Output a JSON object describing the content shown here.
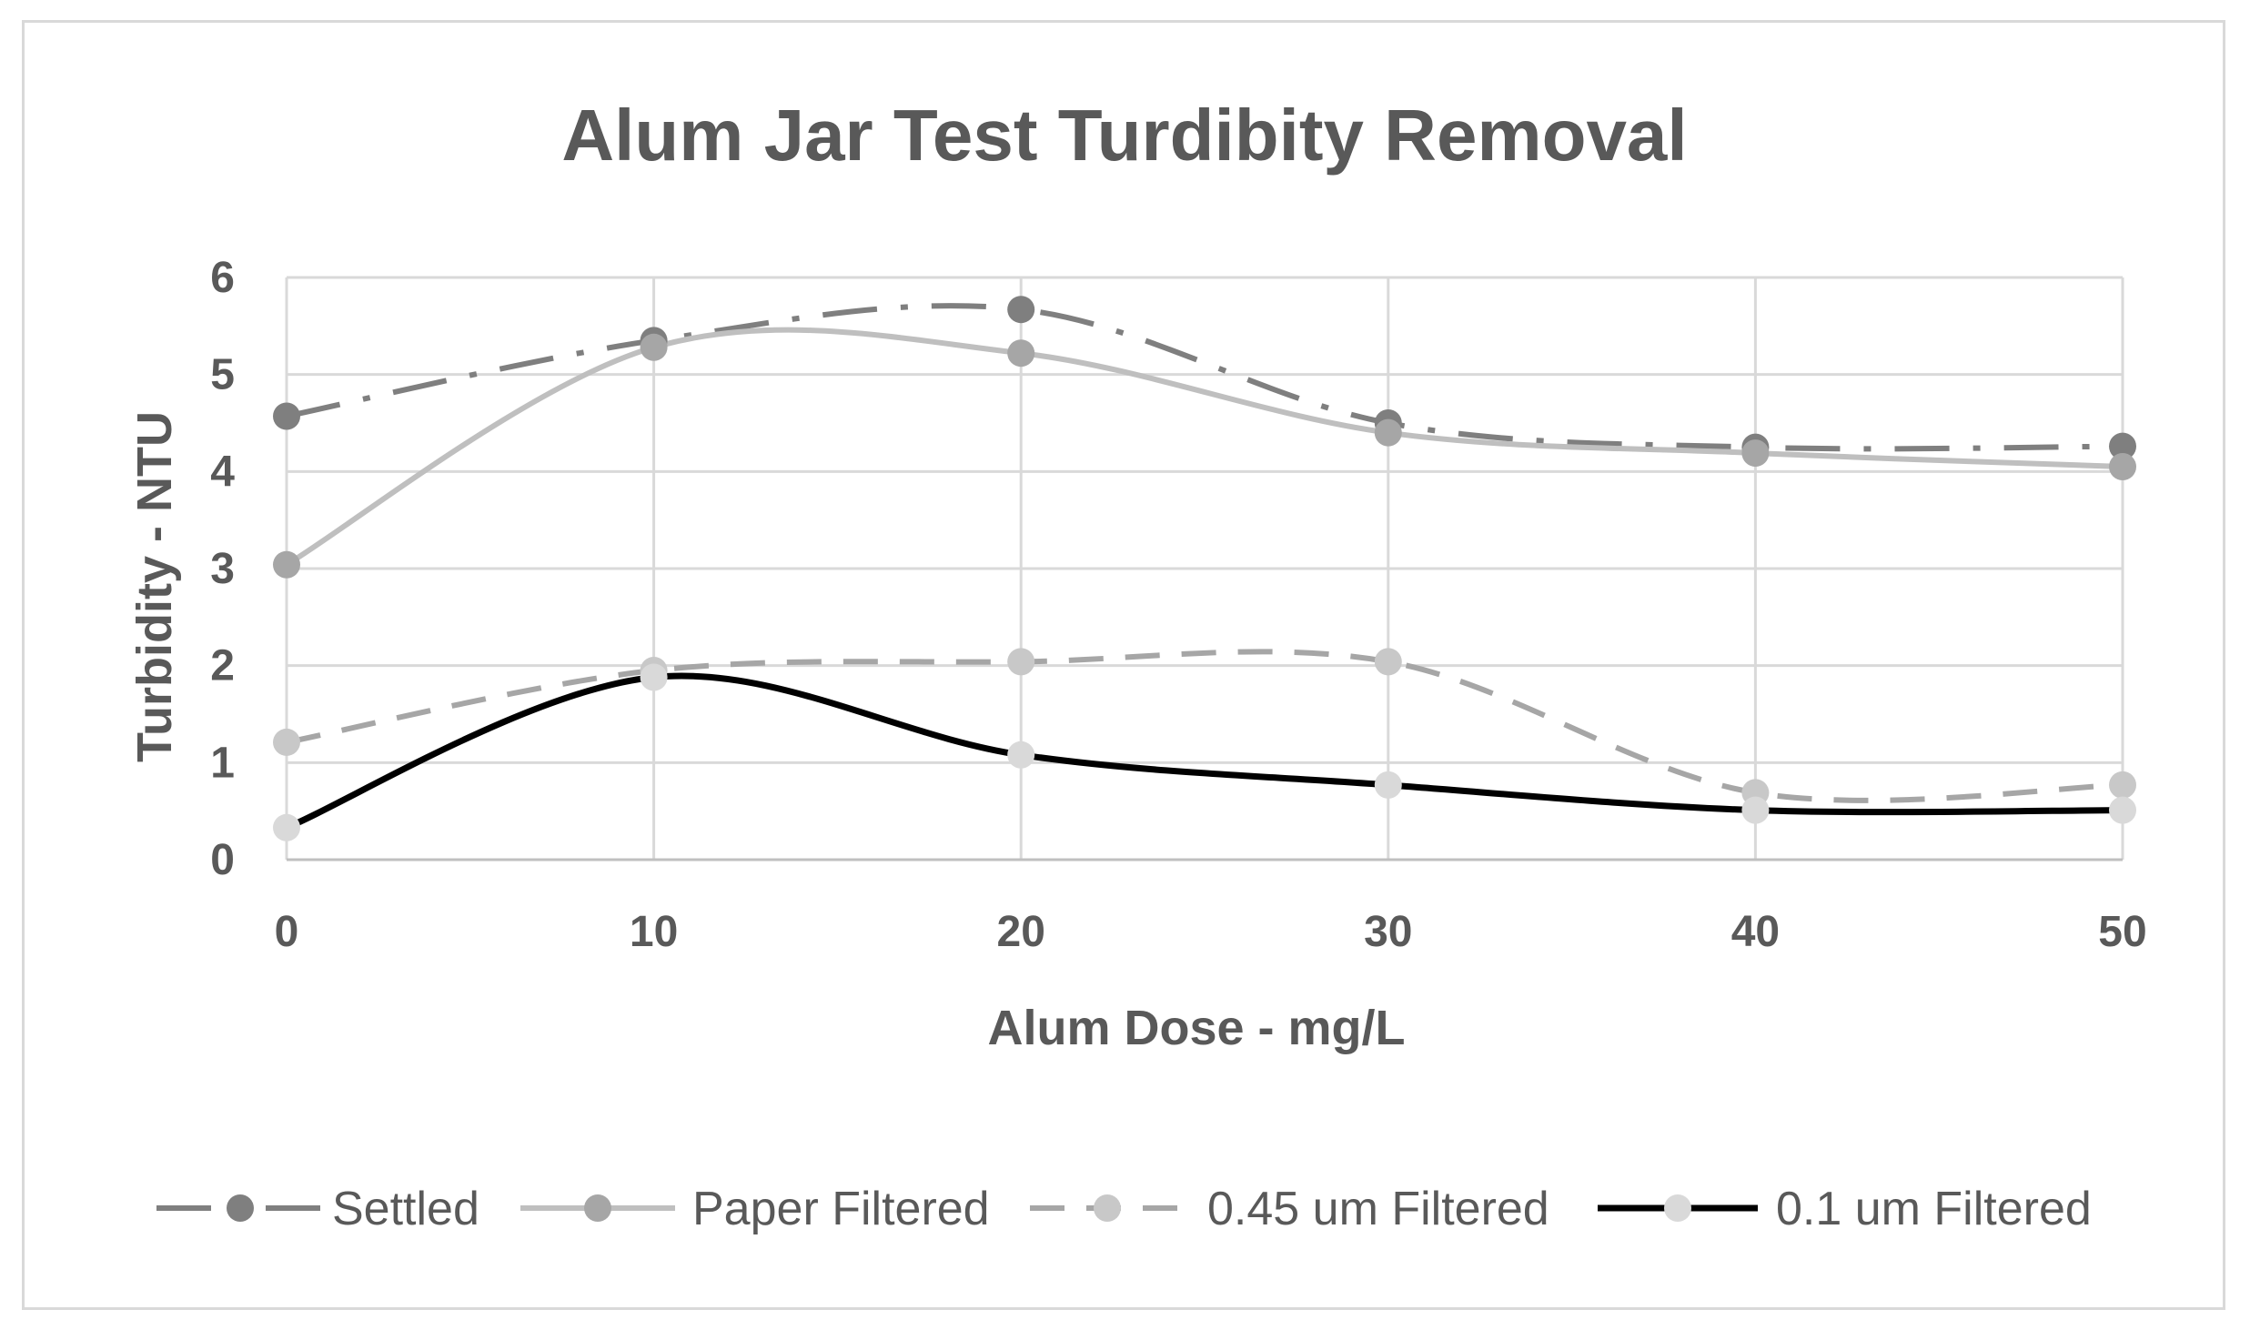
{
  "chart_data": {
    "type": "line",
    "title": "Alum Jar Test Turdibity Removal",
    "xlabel": "Alum Dose - mg/L",
    "ylabel": "Turbidity - NTU",
    "x": [
      0,
      10,
      20,
      30,
      40,
      50
    ],
    "xticks": [
      "0",
      "10",
      "20",
      "30",
      "40",
      "50"
    ],
    "yticks": [
      "0",
      "1",
      "2",
      "3",
      "4",
      "5",
      "6"
    ],
    "xlim": [
      0,
      50
    ],
    "ylim": [
      0,
      6
    ],
    "grid": true,
    "smooth": true,
    "legend_position": "bottom",
    "series": [
      {
        "name": "Settled",
        "values": [
          4.57,
          5.35,
          5.67,
          4.5,
          4.25,
          4.26
        ],
        "color": "#7f7f7f",
        "dash": "dash-dot",
        "marker_color": "#7f7f7f"
      },
      {
        "name": "Paper Filtered",
        "values": [
          3.04,
          5.28,
          5.22,
          4.4,
          4.19,
          4.05
        ],
        "color": "#bfbfbf",
        "dash": "solid",
        "marker_color": "#a6a6a6"
      },
      {
        "name": "0.45 um Filtered",
        "values": [
          1.21,
          1.95,
          2.04,
          2.04,
          0.69,
          0.77
        ],
        "color": "#a6a6a6",
        "dash": "dashed",
        "marker_color": "#c8c8c8"
      },
      {
        "name": "0.1 um Filtered",
        "values": [
          0.33,
          1.88,
          1.08,
          0.77,
          0.51,
          0.51
        ],
        "color": "#000000",
        "dash": "solid",
        "marker_color": "#d9d9d9"
      }
    ]
  }
}
